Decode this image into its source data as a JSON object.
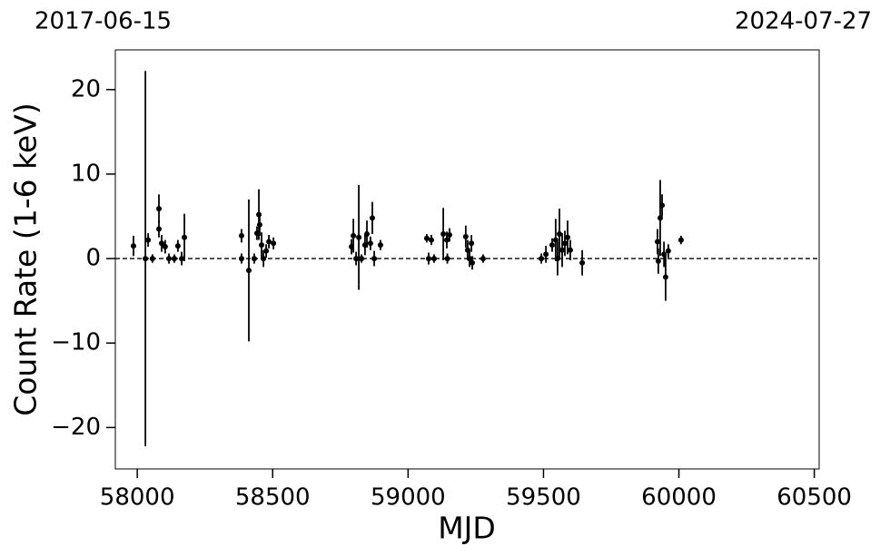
{
  "chart_data": {
    "type": "errorbar",
    "date_labels": [
      "2017-06-15",
      "2024-07-27"
    ],
    "xlabel": "MJD",
    "ylabel": "Count Rate (1-6 keV)",
    "xlim": [
      57919,
      60518
    ],
    "ylim": [
      -24.9,
      24.7
    ],
    "xticks": [
      58000,
      58500,
      59000,
      59500,
      60000,
      60500
    ],
    "yticks": [
      {
        "value": -20,
        "label": "−20"
      },
      {
        "value": -10,
        "label": "−10"
      },
      0,
      10,
      20
    ],
    "reference_line": 0,
    "color": "#000000",
    "x": [
      57986,
      58030,
      58040,
      58056,
      58080,
      58080,
      58090,
      58103,
      58117,
      58137,
      58150,
      58164,
      58174,
      58385,
      58385,
      58412,
      58432,
      58442,
      58449,
      58452,
      58459,
      58466,
      58476,
      58486,
      58503,
      58791,
      58798,
      58808,
      58818,
      58828,
      58841,
      58848,
      58861,
      58868,
      58875,
      58898,
      59069,
      59076,
      59086,
      59096,
      59130,
      59143,
      59153,
      59145,
      59213,
      59220,
      59227,
      59234,
      59237,
      59277,
      59492,
      59509,
      59532,
      59545,
      59552,
      59559,
      59569,
      59579,
      59589,
      59599,
      59643,
      59921,
      59924,
      59931,
      59938,
      59945,
      59951,
      59961,
      60008
    ],
    "values": [
      1.5,
      0,
      2.2,
      0,
      5.9,
      3.5,
      1.8,
      1.4,
      0,
      0,
      1.5,
      0,
      2.5,
      2.7,
      0,
      -1.4,
      0,
      3,
      5.2,
      4.0,
      1.6,
      0,
      0.9,
      2,
      1.8,
      1.4,
      2.7,
      0,
      2.5,
      0,
      1.6,
      2.9,
      1.8,
      4.8,
      0,
      1.6,
      2.4,
      0,
      2.2,
      0,
      2.9,
      2.2,
      2.8,
      0,
      2.6,
      1.0,
      0,
      1.8,
      -0.5,
      0,
      0,
      0.5,
      1.6,
      2.2,
      0,
      2.9,
      1.0,
      1.8,
      2.5,
      1.0,
      -0.5,
      2.0,
      -0.3,
      4.8,
      6.3,
      0.5,
      -2.2,
      0.9,
      2.2
    ],
    "errors": [
      1.2,
      22.2,
      0.8,
      0.5,
      1.7,
      1.0,
      1.0,
      0.8,
      0.6,
      0.5,
      0.7,
      0.8,
      2.8,
      0.8,
      0.6,
      8.4,
      0.6,
      0.8,
      3,
      1.3,
      1.5,
      1.0,
      0.8,
      0.8,
      0.7,
      0.9,
      2.0,
      0.8,
      6.2,
      0.5,
      1.2,
      1.6,
      0.8,
      1.9,
      0.9,
      0.6,
      0.5,
      0.7,
      0.6,
      0.5,
      3.1,
      1.0,
      0.8,
      0.6,
      1.3,
      1.2,
      1.0,
      1.0,
      0.8,
      0.5,
      0.6,
      1.0,
      0.8,
      2.5,
      2.0,
      3.0,
      2.0,
      1.5,
      2.0,
      1.2,
      1.5,
      1.5,
      1.5,
      4.5,
      1.3,
      1.5,
      2.8,
      0.8,
      0.5
    ]
  }
}
